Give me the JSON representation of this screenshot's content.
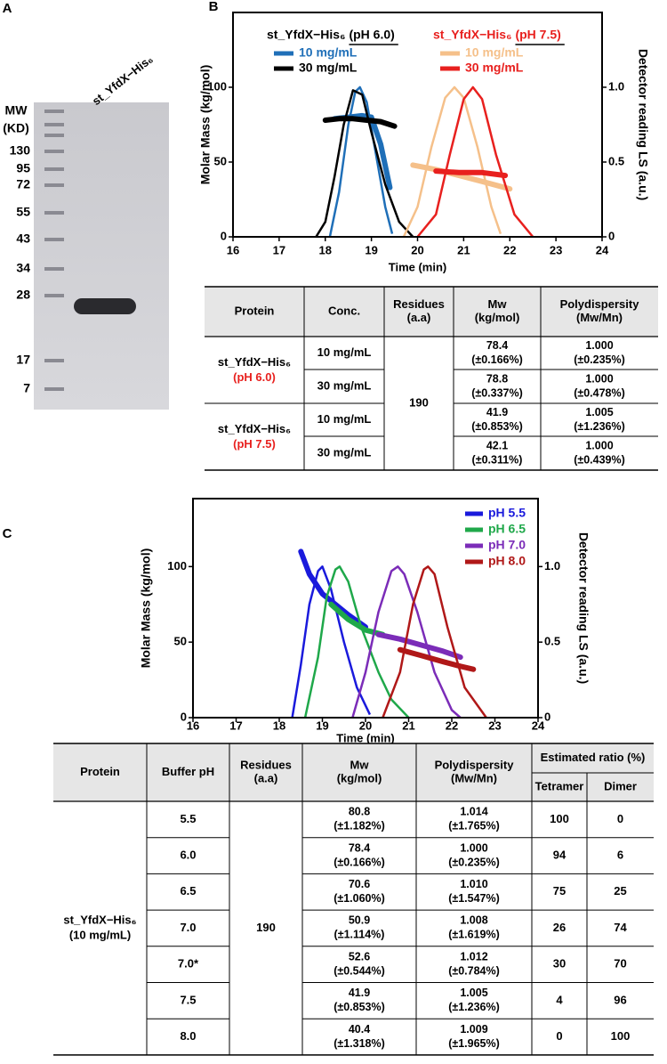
{
  "panel_labels": [
    "A",
    "B",
    "C"
  ],
  "gel": {
    "lane_label": "st_YfdX−His₆",
    "mw_header": [
      "MW",
      "(KD)"
    ],
    "markers": [
      "130",
      "95",
      "72",
      "55",
      "43",
      "34",
      "28",
      "17",
      "7"
    ]
  },
  "chart_data": [
    {
      "type": "line",
      "xlabel": "Time (min)",
      "ylabel": "Molar Mass (kg/mol)",
      "y2label": "Detector reading LS (a.u.)",
      "xlim": [
        16,
        24
      ],
      "xticks": [
        16,
        17,
        18,
        19,
        20,
        21,
        22,
        23,
        24
      ],
      "ylim": [
        0,
        150
      ],
      "yticks": [
        0,
        50,
        100
      ],
      "y2lim": [
        0,
        1.5
      ],
      "y2ticks": [
        0,
        0.5,
        {
          "value": 1,
          "label": "1.0"
        }
      ],
      "groups": [
        {
          "protein": "st_YfdX−His₆",
          "condition": "(pH 6.0)",
          "color": "#000000",
          "series": [
            {
              "name": "10 mg/mL",
              "color": "#1f6fb8",
              "mass": {
                "x": [
                  18.2,
                  18.5,
                  18.8,
                  19.0,
                  19.2,
                  19.4
                ],
                "values": [
                  79,
                  80,
                  81,
                  80,
                  62,
                  33
                ]
              },
              "ls": {
                "axis": "y2",
                "x": [
                  18.1,
                  18.3,
                  18.5,
                  18.65,
                  18.75,
                  18.9,
                  19.1,
                  19.3,
                  19.45
                ],
                "values": [
                  0,
                  0.3,
                  0.75,
                  0.97,
                  1.0,
                  0.9,
                  0.55,
                  0.2,
                  0.02
                ]
              }
            },
            {
              "name": "30 mg/mL",
              "color": "#000000",
              "mass": {
                "x": [
                  18.0,
                  18.3,
                  18.6,
                  18.9,
                  19.2,
                  19.5
                ],
                "values": [
                  78,
                  79,
                  79,
                  78,
                  77,
                  74
                ]
              },
              "ls": {
                "axis": "y2",
                "x": [
                  17.8,
                  18.0,
                  18.2,
                  18.4,
                  18.6,
                  18.8,
                  19.0,
                  19.3,
                  19.6,
                  19.9
                ],
                "values": [
                  0,
                  0.1,
                  0.4,
                  0.75,
                  0.98,
                  0.95,
                  0.7,
                  0.35,
                  0.1,
                  0
                ]
              }
            }
          ]
        },
        {
          "protein": "st_YfdX−His₆",
          "condition": "(pH 7.5)",
          "color": "#e8201e",
          "series": [
            {
              "name": "10 mg/mL",
              "color": "#f5c08a",
              "mass": {
                "x": [
                  19.9,
                  20.4,
                  20.9,
                  21.4,
                  22.0
                ],
                "values": [
                  48,
                  45,
                  41,
                  37,
                  32
                ]
              },
              "ls": {
                "axis": "y2",
                "x": [
                  19.7,
                  20.0,
                  20.3,
                  20.6,
                  20.8,
                  21.0,
                  21.3,
                  21.6,
                  21.8
                ],
                "values": [
                  0,
                  0.2,
                  0.6,
                  0.93,
                  1.0,
                  0.93,
                  0.6,
                  0.2,
                  0.02
                ]
              }
            },
            {
              "name": "30 mg/mL",
              "color": "#e8201e",
              "mass": {
                "x": [
                  20.4,
                  20.9,
                  21.4,
                  21.9
                ],
                "values": [
                  44,
                  43,
                  43,
                  41
                ]
              },
              "ls": {
                "axis": "y2",
                "x": [
                  20.0,
                  20.4,
                  20.7,
                  21.0,
                  21.2,
                  21.4,
                  21.7,
                  22.1,
                  22.5
                ],
                "values": [
                  0,
                  0.15,
                  0.55,
                  0.92,
                  1.0,
                  0.92,
                  0.55,
                  0.15,
                  0
                ]
              }
            }
          ]
        }
      ]
    },
    {
      "type": "line",
      "xlabel": "Time (min)",
      "ylabel": "Molar Mass (kg/mol)",
      "y2label": "Detector reading LS (a.u.)",
      "xlim": [
        16,
        24
      ],
      "xticks": [
        16,
        17,
        18,
        19,
        20,
        21,
        22,
        23,
        24
      ],
      "ylim": [
        0,
        145
      ],
      "yticks": [
        0,
        50,
        100
      ],
      "y2lim": [
        0,
        1.45
      ],
      "y2ticks": [
        0,
        0.5,
        {
          "value": 1,
          "label": "1.0"
        }
      ],
      "series": [
        {
          "name": "pH 5.5",
          "color": "#1a1adc",
          "mass": {
            "x": [
              18.5,
              18.7,
              19.0,
              19.3,
              19.6,
              20.0
            ],
            "values": [
              110,
              95,
              82,
              75,
              68,
              60
            ]
          },
          "ls": {
            "axis": "y2",
            "x": [
              18.3,
              18.5,
              18.7,
              18.9,
              19.0,
              19.2,
              19.5,
              19.8,
              20.1
            ],
            "values": [
              0,
              0.35,
              0.75,
              0.97,
              1.0,
              0.85,
              0.5,
              0.2,
              0.02
            ]
          }
        },
        {
          "name": "pH 6.5",
          "color": "#1fa84a",
          "mass": {
            "x": [
              19.2,
              19.6,
              20.0,
              20.4
            ],
            "values": [
              75,
              65,
              58,
              55
            ]
          },
          "ls": {
            "axis": "y2",
            "x": [
              18.6,
              18.9,
              19.1,
              19.3,
              19.4,
              19.6,
              19.9,
              20.3,
              20.6,
              21.0
            ],
            "values": [
              0,
              0.4,
              0.8,
              0.98,
              1.0,
              0.9,
              0.6,
              0.3,
              0.12,
              0
            ]
          }
        },
        {
          "name": "pH 7.0",
          "color": "#7b2cb8",
          "mass": {
            "x": [
              20.3,
              20.8,
              21.3,
              21.8,
              22.2
            ],
            "values": [
              55,
              52,
              48,
              44,
              40
            ]
          },
          "ls": {
            "axis": "y2",
            "x": [
              19.7,
              20.0,
              20.3,
              20.6,
              20.75,
              20.9,
              21.2,
              21.6,
              22.0,
              22.2
            ],
            "values": [
              0,
              0.3,
              0.7,
              0.97,
              1.0,
              0.95,
              0.7,
              0.3,
              0.05,
              0
            ]
          }
        },
        {
          "name": "pH 8.0",
          "color": "#b01818",
          "mass": {
            "x": [
              20.8,
              21.3,
              21.8,
              22.2,
              22.5
            ],
            "values": [
              45,
              41,
              37,
              34,
              32
            ]
          },
          "ls": {
            "axis": "y2",
            "x": [
              20.4,
              20.8,
              21.1,
              21.35,
              21.45,
              21.6,
              21.9,
              22.3,
              22.8
            ],
            "values": [
              0,
              0.3,
              0.75,
              0.98,
              1.0,
              0.95,
              0.6,
              0.2,
              0
            ]
          }
        }
      ]
    }
  ],
  "table_b": {
    "headers": [
      [
        "Protein"
      ],
      [
        "Conc."
      ],
      [
        "Residues",
        "(a.a)"
      ],
      [
        "Mw",
        "(kg/mol)"
      ],
      [
        "Polydispersity",
        "(Mw/Mn)"
      ]
    ],
    "residues": "190",
    "groups": [
      {
        "protein": "st_YfdX−His₆",
        "condition": "(pH 6.0)",
        "rows": [
          {
            "conc": "10 mg/mL",
            "mw": [
              "78.4",
              "(±0.166%)"
            ],
            "pdi": [
              "1.000",
              "(±0.235%)"
            ]
          },
          {
            "conc": "30 mg/mL",
            "mw": [
              "78.8",
              "(±0.337%)"
            ],
            "pdi": [
              "1.000",
              "(±0.478%)"
            ]
          }
        ]
      },
      {
        "protein": "st_YfdX−His₆",
        "condition": "(pH 7.5)",
        "rows": [
          {
            "conc": "10 mg/mL",
            "mw": [
              "41.9",
              "(±0.853%)"
            ],
            "pdi": [
              "1.005",
              "(±1.236%)"
            ]
          },
          {
            "conc": "30 mg/mL",
            "mw": [
              "42.1",
              "(±0.311%)"
            ],
            "pdi": [
              "1.000",
              "(±0.439%)"
            ]
          }
        ]
      }
    ]
  },
  "table_c": {
    "headers": [
      [
        "Protein"
      ],
      [
        "Buffer pH"
      ],
      [
        "Residues",
        "(a.a)"
      ],
      [
        "Mw",
        "(kg/mol)"
      ],
      [
        "Polydispersity",
        "(Mw/Mn)"
      ]
    ],
    "ratio_header": "Estimated ratio (%)",
    "ratio_columns": [
      "Tetramer",
      "Dimer"
    ],
    "protein": [
      "st_YfdX−His₆",
      "(10 mg/mL)"
    ],
    "residues": "190",
    "rows": [
      {
        "ph": "5.5",
        "mw": [
          "80.8",
          "(±1.182%)"
        ],
        "pdi": [
          "1.014",
          "(±1.765%)"
        ],
        "tetramer": 100,
        "dimer": 0
      },
      {
        "ph": "6.0",
        "mw": [
          "78.4",
          "(±0.166%)"
        ],
        "pdi": [
          "1.000",
          "(±0.235%)"
        ],
        "tetramer": 94,
        "dimer": 6
      },
      {
        "ph": "6.5",
        "mw": [
          "70.6",
          "(±1.060%)"
        ],
        "pdi": [
          "1.010",
          "(±1.547%)"
        ],
        "tetramer": 75,
        "dimer": 25
      },
      {
        "ph": "7.0",
        "mw": [
          "50.9",
          "(±1.114%)"
        ],
        "pdi": [
          "1.008",
          "(±1.619%)"
        ],
        "tetramer": 26,
        "dimer": 74
      },
      {
        "ph": "7.0*",
        "mw": [
          "52.6",
          "(±0.544%)"
        ],
        "pdi": [
          "1.012",
          "(±0.784%)"
        ],
        "tetramer": 30,
        "dimer": 70
      },
      {
        "ph": "7.5",
        "mw": [
          "41.9",
          "(±0.853%)"
        ],
        "pdi": [
          "1.005",
          "(±1.236%)"
        ],
        "tetramer": 4,
        "dimer": 96
      },
      {
        "ph": "8.0",
        "mw": [
          "40.4",
          "(±1.318%)"
        ],
        "pdi": [
          "1.009",
          "(±1.965%)"
        ],
        "tetramer": 0,
        "dimer": 100
      }
    ]
  }
}
